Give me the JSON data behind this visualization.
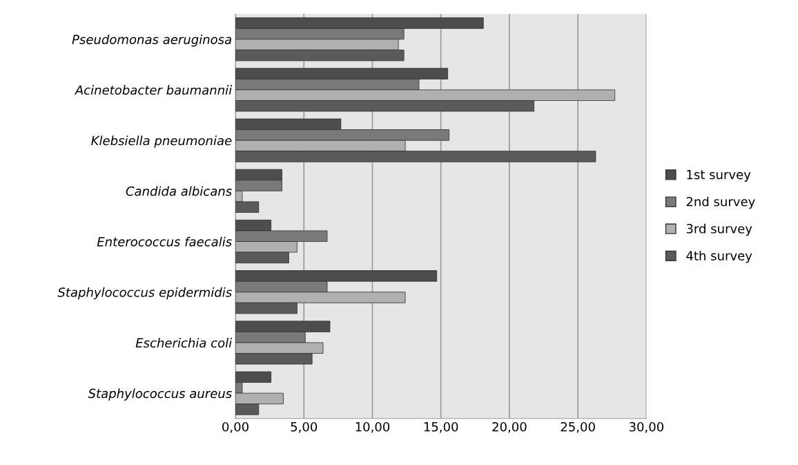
{
  "chart_data": {
    "type": "bar",
    "orientation": "horizontal",
    "categories": [
      "Pseudomonas aeruginosa",
      "Acinetobacter baumannii",
      "Klebsiella pneumoniae",
      "Candida albicans",
      "Enterococcus faecalis",
      "Staphylococcus epidermidis",
      "Escherichia coli",
      "Staphylococcus aureus"
    ],
    "series": [
      {
        "name": "1st survey",
        "color": "#4d4d4d",
        "values": [
          18.1,
          15.5,
          7.7,
          3.4,
          2.6,
          14.7,
          6.9,
          2.6
        ]
      },
      {
        "name": "2nd survey",
        "color": "#7a7a7a",
        "values": [
          12.3,
          13.4,
          15.6,
          3.4,
          6.7,
          6.7,
          5.1,
          0.5
        ]
      },
      {
        "name": "3rd survey",
        "color": "#b0b0b0",
        "values": [
          11.9,
          27.7,
          12.4,
          0.5,
          4.5,
          12.4,
          6.4,
          3.5
        ]
      },
      {
        "name": "4th survey",
        "color": "#5a5a5a",
        "values": [
          12.3,
          21.8,
          26.3,
          1.7,
          3.9,
          4.5,
          5.6,
          1.7
        ]
      }
    ],
    "xlim": [
      0,
      30
    ],
    "xticks": [
      {
        "value": 0,
        "label": "0,00"
      },
      {
        "value": 5,
        "label": "5,00"
      },
      {
        "value": 10,
        "label": "10,00"
      },
      {
        "value": 15,
        "label": "15,00"
      },
      {
        "value": 20,
        "label": "20,00"
      },
      {
        "value": 25,
        "label": "25,00"
      },
      {
        "value": 30,
        "label": "30,00"
      }
    ],
    "grid": "x",
    "legend": "right"
  }
}
